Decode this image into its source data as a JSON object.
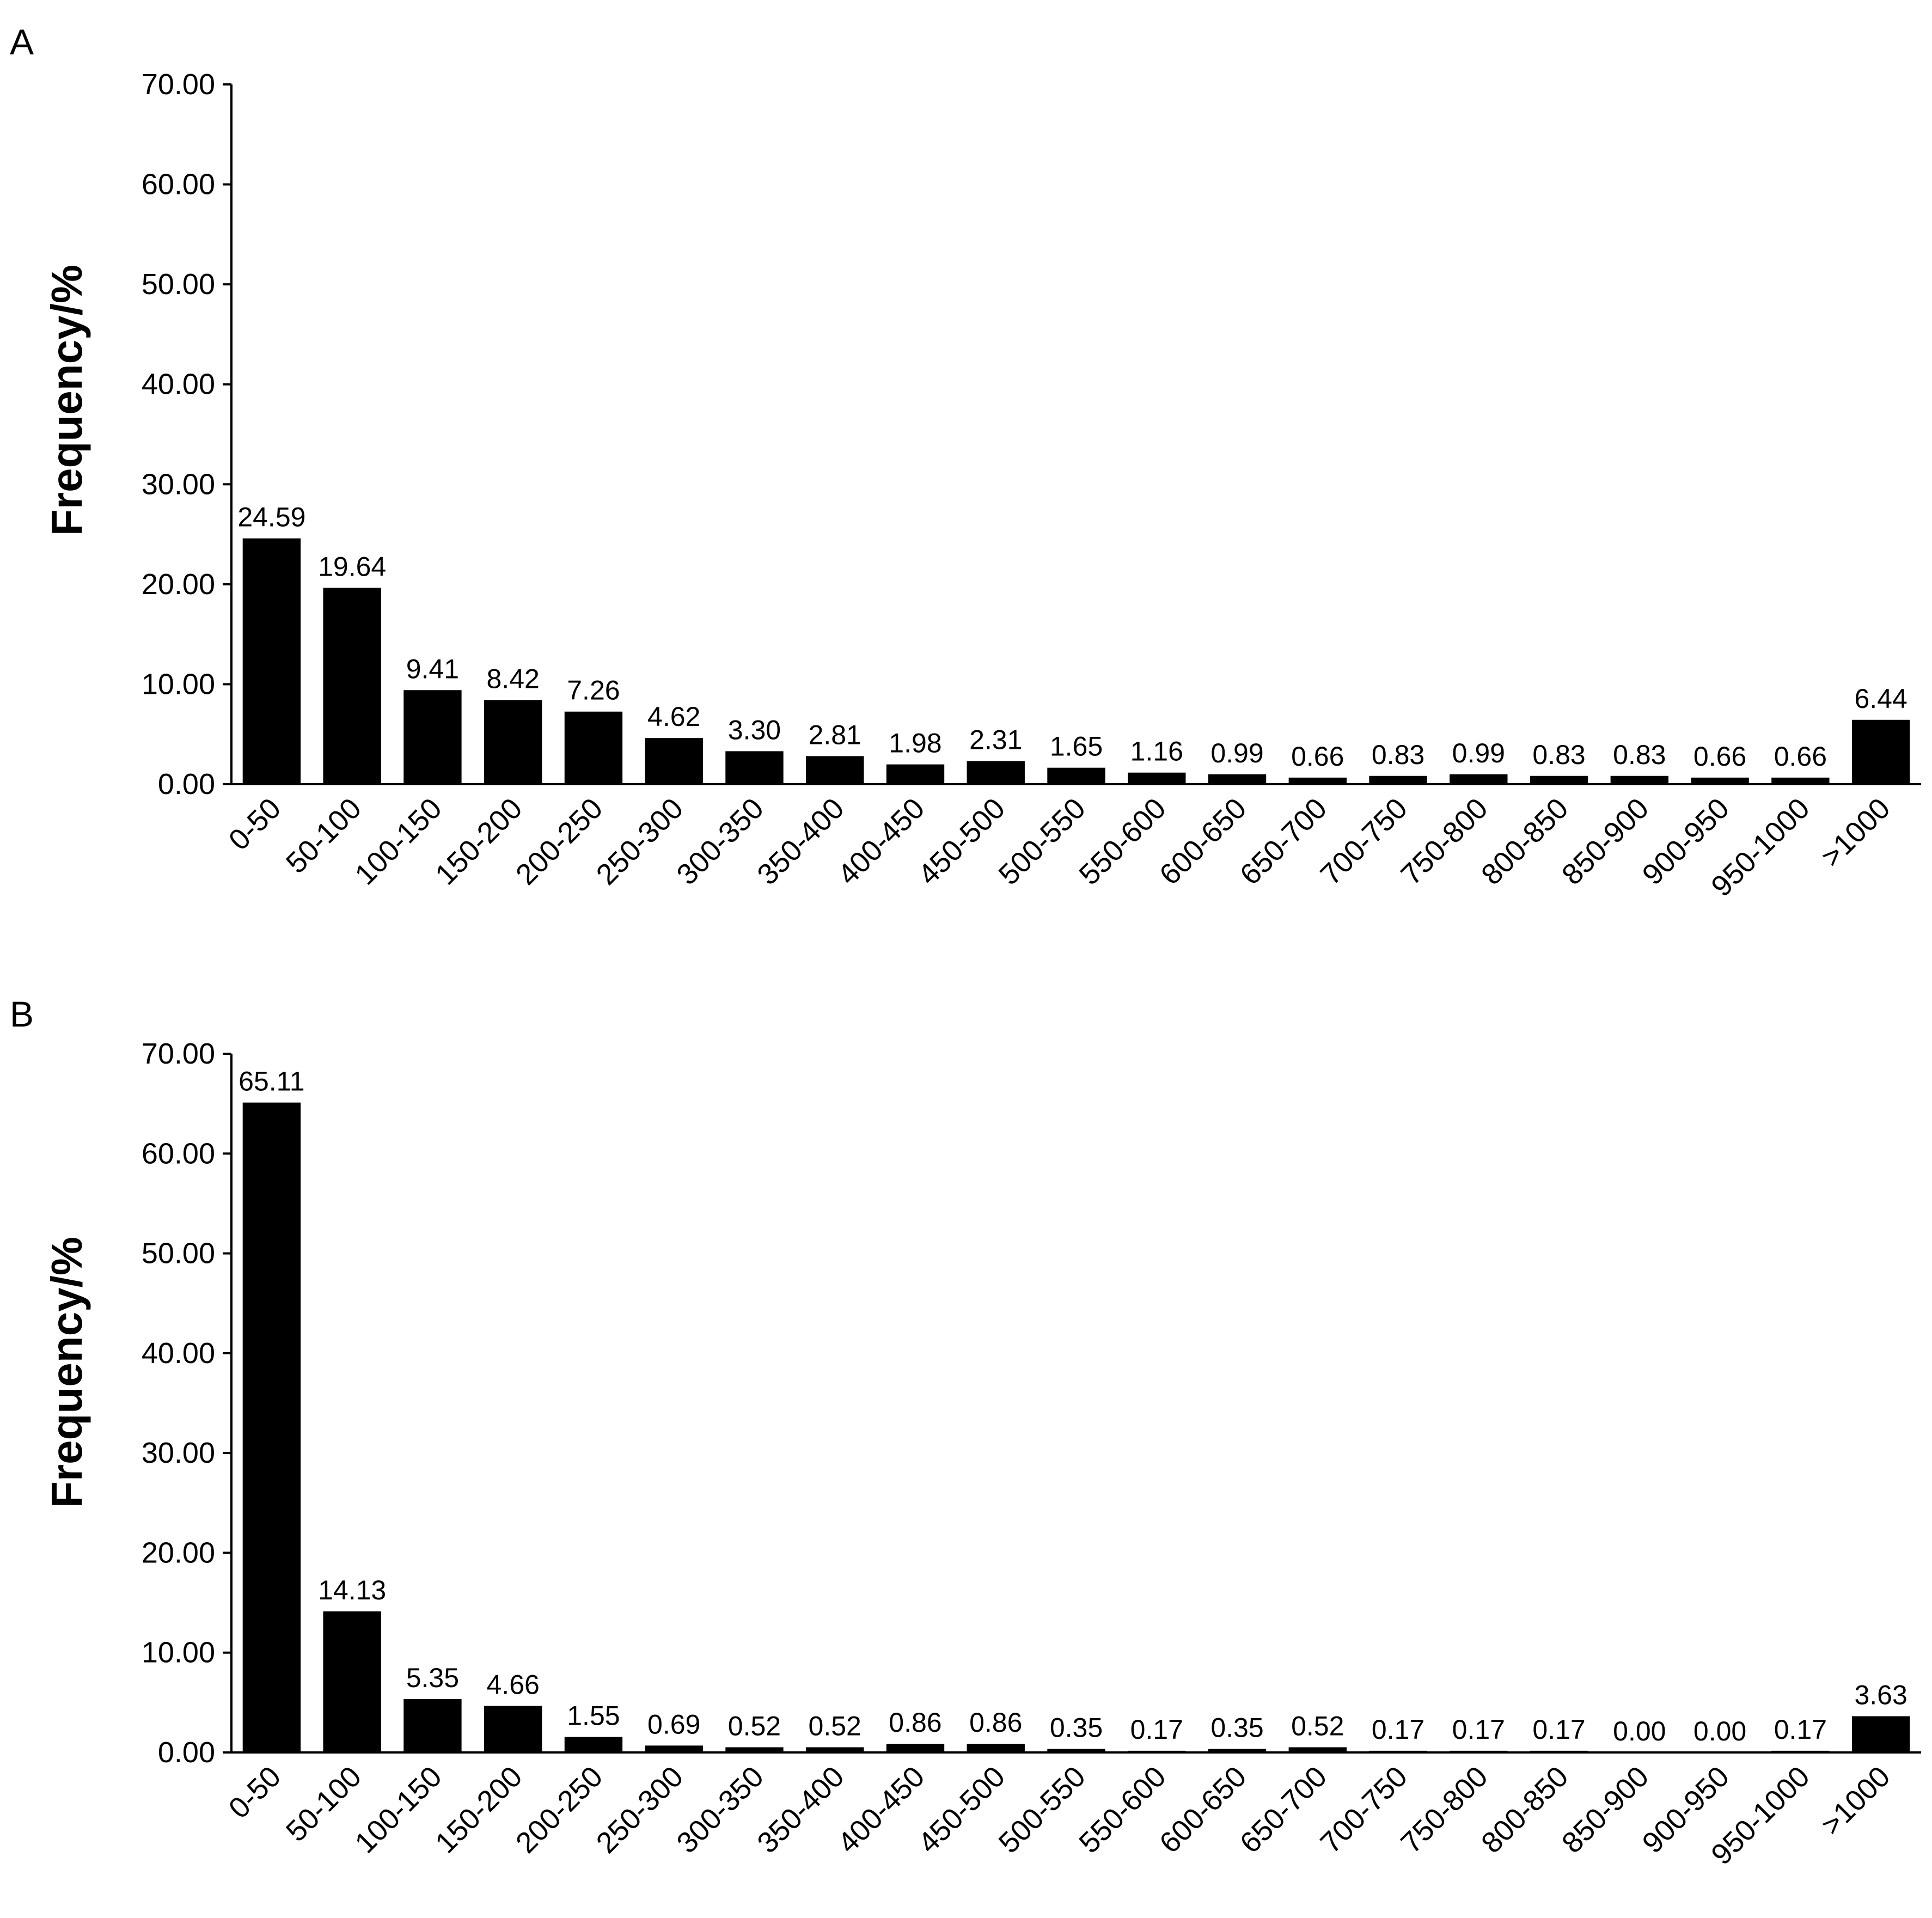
{
  "chart_data": [
    {
      "type": "bar",
      "panel_label": "A",
      "ylabel": "Frequency/%",
      "xlabel": "",
      "ylim": [
        0,
        70
      ],
      "yticks": [
        "0.00",
        "10.00",
        "20.00",
        "30.00",
        "40.00",
        "50.00",
        "60.00",
        "70.00"
      ],
      "categories": [
        "0-50",
        "50-100",
        "100-150",
        "150-200",
        "200-250",
        "250-300",
        "300-350",
        "350-400",
        "400-450",
        "450-500",
        "500-550",
        "550-600",
        "600-650",
        "650-700",
        "700-750",
        "750-800",
        "800-850",
        "850-900",
        "900-950",
        "950-1000",
        ">1000"
      ],
      "values": [
        24.59,
        19.64,
        9.41,
        8.42,
        7.26,
        4.62,
        3.3,
        2.81,
        1.98,
        2.31,
        1.65,
        1.16,
        0.99,
        0.66,
        0.83,
        0.99,
        0.83,
        0.83,
        0.66,
        0.66,
        6.44
      ],
      "value_labels": [
        "24.59",
        "19.64",
        "9.41",
        "8.42",
        "7.26",
        "4.62",
        "3.30",
        "2.81",
        "1.98",
        "2.31",
        "1.65",
        "1.16",
        "0.99",
        "0.66",
        "0.83",
        "0.99",
        "0.83",
        "0.83",
        "0.66",
        "0.66",
        "6.44"
      ],
      "grid": false,
      "legend": "none",
      "bar_color": "#000000"
    },
    {
      "type": "bar",
      "panel_label": "B",
      "ylabel": "Frequency/%",
      "xlabel": "",
      "ylim": [
        0,
        70
      ],
      "yticks": [
        "0.00",
        "10.00",
        "20.00",
        "30.00",
        "40.00",
        "50.00",
        "60.00",
        "70.00"
      ],
      "categories": [
        "0-50",
        "50-100",
        "100-150",
        "150-200",
        "200-250",
        "250-300",
        "300-350",
        "350-400",
        "400-450",
        "450-500",
        "500-550",
        "550-600",
        "600-650",
        "650-700",
        "700-750",
        "750-800",
        "800-850",
        "850-900",
        "900-950",
        "950-1000",
        ">1000"
      ],
      "values": [
        65.11,
        14.13,
        5.35,
        4.66,
        1.55,
        0.69,
        0.52,
        0.52,
        0.86,
        0.86,
        0.35,
        0.17,
        0.35,
        0.52,
        0.17,
        0.17,
        0.17,
        0.0,
        0.0,
        0.17,
        3.63
      ],
      "value_labels": [
        "65.11",
        "14.13",
        "5.35",
        "4.66",
        "1.55",
        "0.69",
        "0.52",
        "0.52",
        "0.86",
        "0.86",
        "0.35",
        "0.17",
        "0.35",
        "0.52",
        "0.17",
        "0.17",
        "0.17",
        "0.00",
        "0.00",
        "0.17",
        "3.63"
      ],
      "grid": false,
      "legend": "none",
      "bar_color": "#000000"
    }
  ]
}
